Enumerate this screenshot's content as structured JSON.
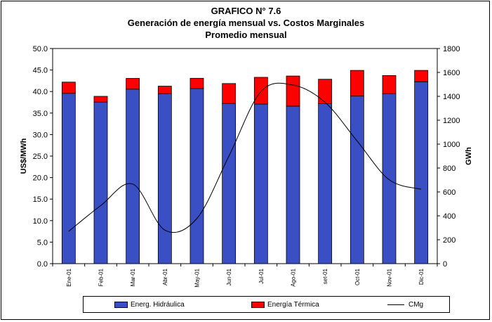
{
  "chart_data": {
    "type": "bar",
    "title": "GRAFICO N° 7.6",
    "subtitle": "Generación de energía mensual vs. Costos Marginales",
    "subtitle2": "Promedio mensual",
    "categories": [
      "Ene-01",
      "Feb-01",
      "Mar-01",
      "Abr-01",
      "May-01",
      "Jun-01",
      "Jul-01",
      "Ago-01",
      "set-01",
      "Oct-01",
      "Nov-01",
      "Dic-01"
    ],
    "series": [
      {
        "name": "Energ. Hidráulica",
        "kind": "bar",
        "axis": "right",
        "stack": "energia",
        "color": "#3b4fc4",
        "values": [
          1425,
          1352,
          1460,
          1422,
          1465,
          1340,
          1335,
          1318,
          1338,
          1402,
          1422,
          1522
        ]
      },
      {
        "name": "Energía Térmica",
        "kind": "bar",
        "axis": "right",
        "stack": "energia",
        "color": "#ff0000",
        "values": [
          94,
          48,
          90,
          63,
          86,
          167,
          224,
          252,
          205,
          215,
          152,
          95
        ]
      },
      {
        "name": "CMg",
        "kind": "line",
        "axis": "left",
        "color": "#000000",
        "values": [
          7.5,
          13.5,
          18.5,
          7.8,
          10.5,
          25.0,
          40.0,
          41.5,
          37.5,
          28.5,
          19.5,
          17.3
        ]
      }
    ],
    "ylabel": "US$/MWh",
    "ylim": [
      0,
      50
    ],
    "yticks": [
      "0.0",
      "5.0",
      "10.0",
      "15.0",
      "20.0",
      "25.0",
      "30.0",
      "35.0",
      "40.0",
      "45.0",
      "50.0"
    ],
    "y2label": "GWh",
    "y2lim": [
      0,
      1800
    ],
    "y2ticks": [
      "0",
      "200",
      "400",
      "600",
      "800",
      "1000",
      "1200",
      "1400",
      "1600",
      "1800"
    ],
    "grid": false,
    "legend_position": "bottom"
  }
}
